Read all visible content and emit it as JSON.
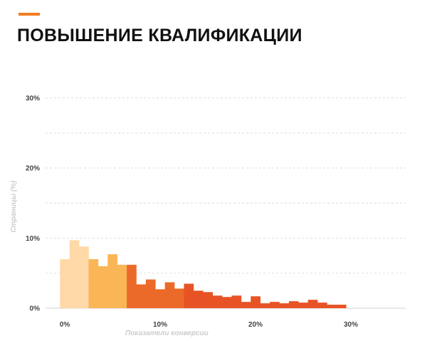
{
  "page": {
    "title": "ПОВЫШЕНИЕ КВАЛИФИКАЦИИ",
    "accent_color": "#f47c20"
  },
  "chart_data": {
    "type": "bar",
    "title": "ПОВЫШЕНИЕ КВАЛИФИКАЦИИ",
    "xlabel": "Показатели конверсии",
    "ylabel": "Страницы (%)",
    "x_unit": "%",
    "y_unit": "%",
    "xlim": [
      -1,
      36
    ],
    "ylim": [
      0,
      30
    ],
    "x_ticks": [
      0,
      10,
      20,
      30
    ],
    "y_ticks": [
      0,
      10,
      20,
      30
    ],
    "x_tick_labels": [
      "0%",
      "10%",
      "20%",
      "30%"
    ],
    "y_tick_labels": [
      "0%",
      "10%",
      "20%",
      "30%"
    ],
    "grid": true,
    "bin_width": 1,
    "bins_start": [
      -0.5,
      0.5,
      1.5,
      2.5,
      3.5,
      4.5,
      5.5,
      6.5,
      7.5,
      8.5,
      9.5,
      10.5,
      11.5,
      12.5,
      13.5,
      14.5,
      15.5,
      16.5,
      17.5,
      18.5,
      19.5,
      20.5,
      21.5,
      22.5,
      23.5,
      24.5,
      25.5,
      26.5,
      27.5,
      28.5
    ],
    "values": [
      7.0,
      9.7,
      8.8,
      7.0,
      6.0,
      7.7,
      6.2,
      6.2,
      3.4,
      4.1,
      2.7,
      3.7,
      2.8,
      3.5,
      2.5,
      2.3,
      1.8,
      1.6,
      1.8,
      0.9,
      1.7,
      0.7,
      0.9,
      0.7,
      1.0,
      0.8,
      1.2,
      0.8,
      0.5,
      0.5
    ],
    "colors": [
      "#fed9a7",
      "#fed9a7",
      "#fed9a7",
      "#fab656",
      "#fab656",
      "#fab656",
      "#fab656",
      "#ec6a29",
      "#ec6a29",
      "#ec6a29",
      "#ec6a29",
      "#ec6a29",
      "#ec6a29",
      "#e85325",
      "#e85325",
      "#e85325",
      "#e85325",
      "#e85325",
      "#e85325",
      "#e85325",
      "#e85325",
      "#e85325",
      "#e85325",
      "#e85325",
      "#e85325",
      "#e85325",
      "#e85325",
      "#e85325",
      "#e85325",
      "#e85325"
    ]
  }
}
